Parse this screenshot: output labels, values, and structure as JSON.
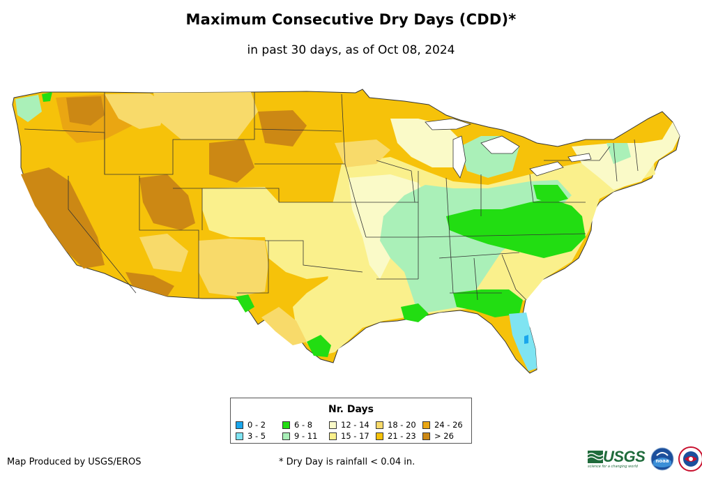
{
  "title": "Maximum Consecutive Dry Days (CDD)*",
  "subtitle": "in past 30 days, as of Oct 08, 2024",
  "legend": {
    "title": "Nr. Days",
    "items": [
      {
        "label": "0 - 2",
        "color": "#1aa6ec"
      },
      {
        "label": "3 - 5",
        "color": "#7fe4f2"
      },
      {
        "label": "6 - 8",
        "color": "#22dd12"
      },
      {
        "label": "9 - 11",
        "color": "#aaf0b8"
      },
      {
        "label": "12 - 14",
        "color": "#fafac8"
      },
      {
        "label": "15 - 17",
        "color": "#faf08c"
      },
      {
        "label": "18 - 20",
        "color": "#f8da6a"
      },
      {
        "label": "21 - 23",
        "color": "#f6c20a"
      },
      {
        "label": "24 - 26",
        "color": "#eaa612"
      },
      {
        "label": "> 26",
        "color": "#cc8814"
      }
    ]
  },
  "credit": "Map Produced by USGS/EROS",
  "footnote": "* Dry Day is rainfall < 0.04 in.",
  "logos": {
    "usgs": "USGS",
    "usgs_tagline": "science for a changing world",
    "noaa": "noaa",
    "nws_icon": "national-weather-service-icon"
  }
}
